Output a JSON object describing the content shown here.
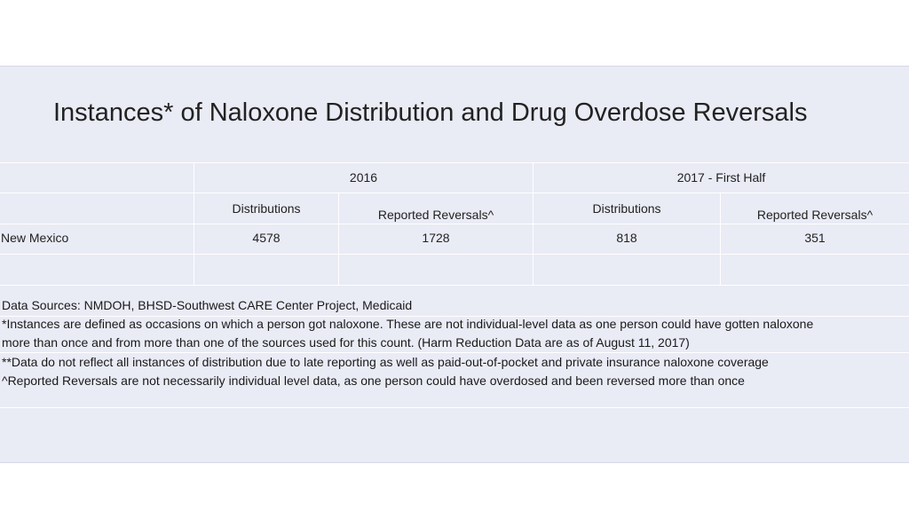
{
  "title": "Instances* of Naloxone Distribution and Drug Overdose Reversals",
  "table": {
    "period_headers": [
      "2016",
      "2017 - First Half"
    ],
    "sub_headers": {
      "p2016_distributions": "Distributions",
      "p2016_reversals": "Reported Reversals^",
      "p2017_distributions": "Distributions",
      "p2017_reversals": "Reported Reversals^"
    },
    "rows": [
      {
        "label": "New Mexico",
        "p2016_distributions": "4578",
        "p2016_reversals": "1728",
        "p2017_distributions": "818",
        "p2017_reversals": "351"
      }
    ]
  },
  "notes": {
    "sources": "Data Sources: NMDOH, BHSD-Southwest CARE Center Project, Medicaid",
    "instances_line1": "*Instances are defined as occasions on which a person got naloxone. These are not individual-level data as one person could have gotten naloxone",
    "instances_line2": "more than once and from more than one of the sources used for this count. (Harm Reduction Data are as of August 11, 2017)",
    "data_note": "**Data do not reflect all instances of distribution due to late reporting as well as paid-out-of-pocket and private insurance naloxone coverage",
    "reversals_note": "^Reported Reversals are not necessarily individual level data, as one person could have overdosed and been reversed more than once"
  }
}
